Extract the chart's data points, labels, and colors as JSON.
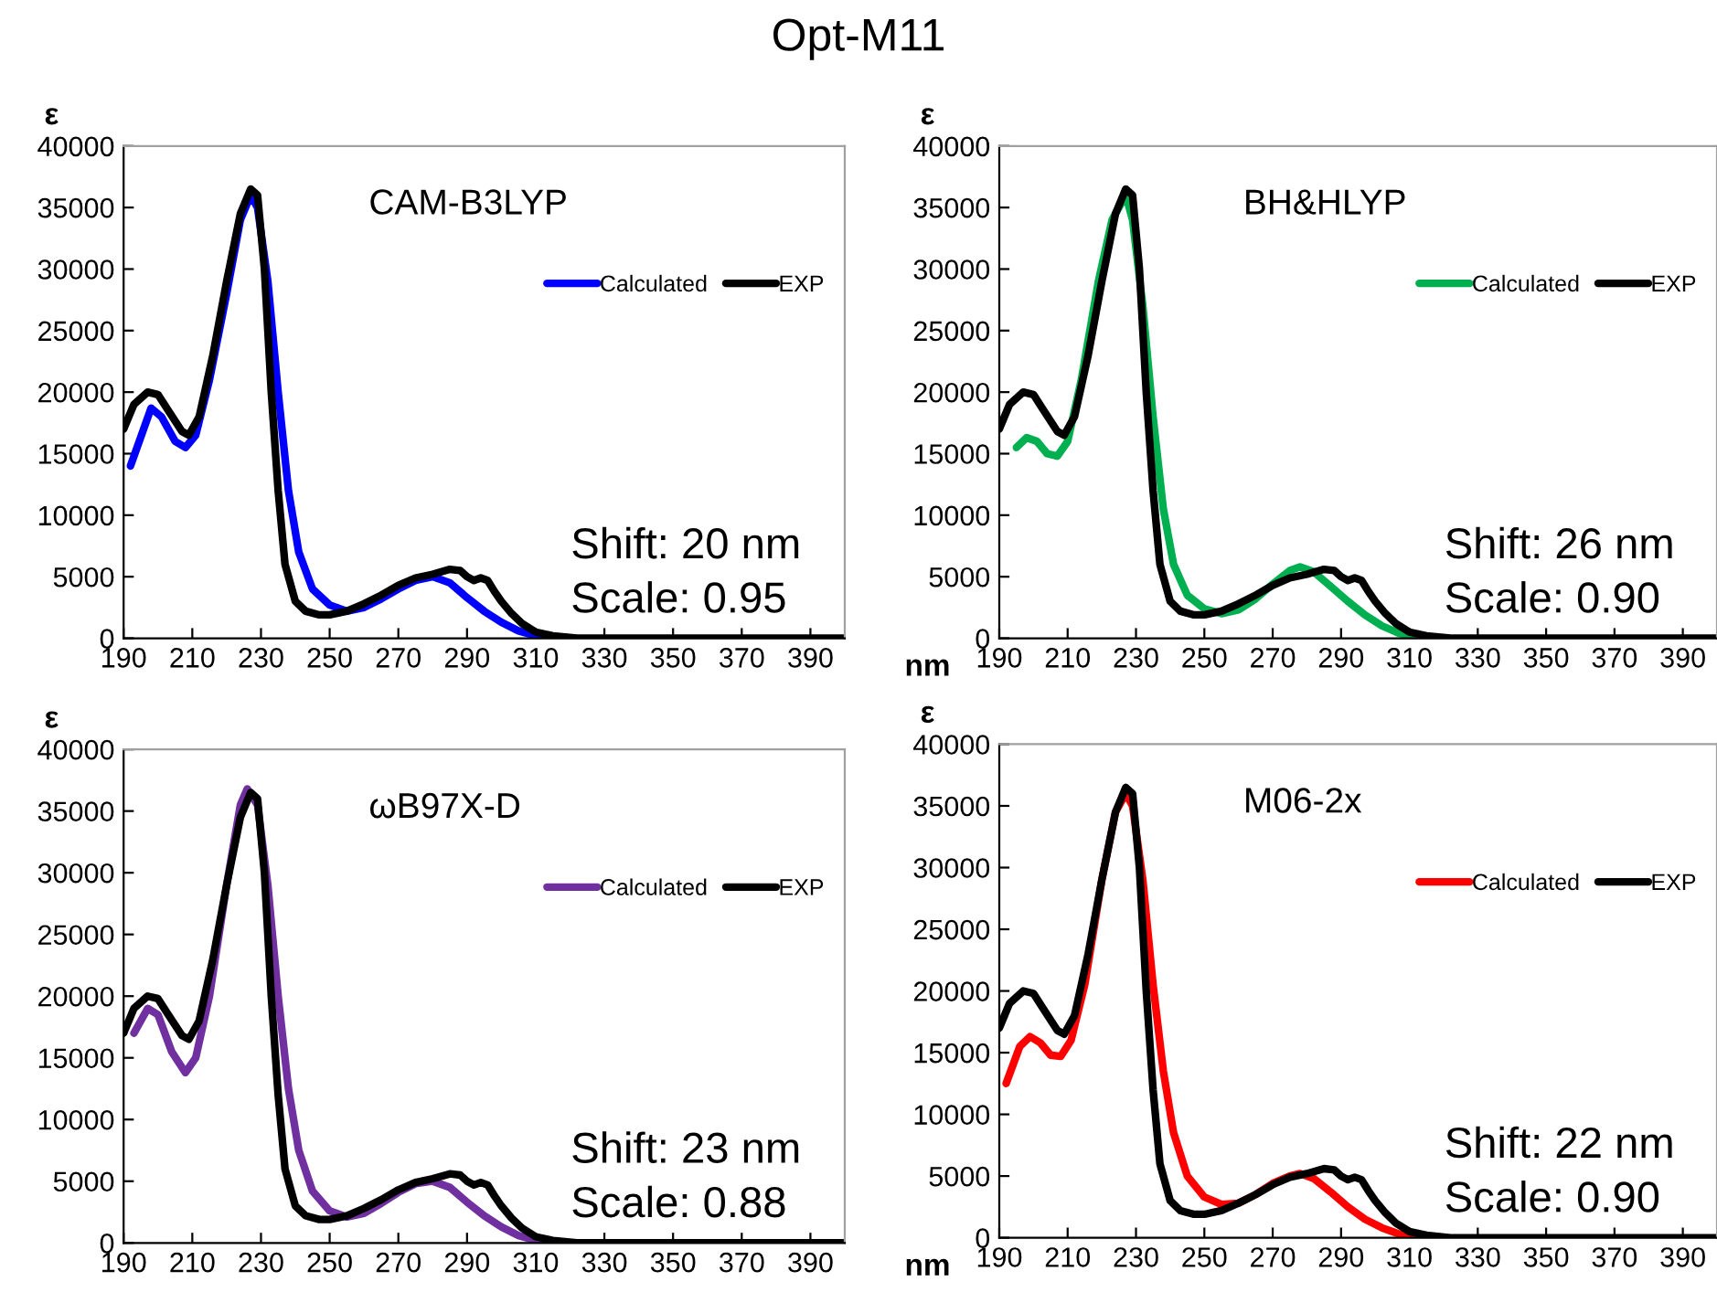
{
  "chart_data": [
    {
      "type": "line",
      "title": "Opt-M11",
      "ylabel": "ε",
      "annotations": [
        "CAM-B3LYP",
        "Shift: 20 nm",
        "Scale: 0.95"
      ],
      "legend": "top right",
      "xlim": [
        190,
        400
      ],
      "xticks": [
        190,
        210,
        230,
        250,
        270,
        290,
        310,
        330,
        350,
        370,
        390
      ],
      "ylim": [
        0,
        40000
      ],
      "yticks": [
        0,
        5000,
        10000,
        15000,
        20000,
        25000,
        30000,
        35000,
        40000
      ],
      "series": [
        {
          "name": "Calculated",
          "color": "#0000ff",
          "x": [
            192,
            198,
            201,
            205,
            208,
            211,
            215,
            220,
            224,
            227,
            229,
            232,
            235,
            238,
            241,
            245,
            250,
            255,
            260,
            265,
            270,
            275,
            280,
            285,
            290,
            295,
            300,
            305,
            310,
            316
          ],
          "values": [
            14000,
            18700,
            18000,
            16000,
            15500,
            16500,
            21000,
            28000,
            34000,
            36000,
            35000,
            29000,
            20000,
            12000,
            7000,
            4000,
            2700,
            2200,
            2500,
            3200,
            4000,
            4700,
            5000,
            4500,
            3300,
            2200,
            1300,
            600,
            200,
            0
          ]
        },
        {
          "name": "EXP",
          "color": "#000000",
          "x": [
            190,
            193,
            197,
            200,
            203,
            207,
            209,
            212,
            216,
            220,
            224,
            227,
            229,
            231,
            233,
            235,
            237,
            240,
            243,
            247,
            250,
            255,
            260,
            265,
            270,
            275,
            280,
            285,
            288,
            290,
            292,
            294,
            296,
            298,
            300,
            303,
            306,
            310,
            315,
            322,
            400
          ],
          "values": [
            17000,
            19000,
            20000,
            19800,
            18500,
            16800,
            16500,
            18000,
            23000,
            29000,
            34500,
            36500,
            36000,
            30000,
            20000,
            12000,
            6000,
            3000,
            2200,
            1900,
            1900,
            2200,
            2800,
            3500,
            4300,
            4900,
            5200,
            5600,
            5500,
            5000,
            4700,
            4900,
            4700,
            3800,
            3000,
            2000,
            1200,
            500,
            200,
            0,
            0
          ]
        }
      ]
    },
    {
      "type": "line",
      "xlabel": "nm",
      "ylabel": "ε",
      "annotations": [
        "BH&HLYP",
        "Shift: 26 nm",
        "Scale: 0.90"
      ],
      "legend": "top right",
      "xlim": [
        190,
        400
      ],
      "xticks": [
        190,
        210,
        230,
        250,
        270,
        290,
        310,
        330,
        350,
        370,
        390
      ],
      "ylim": [
        0,
        40000
      ],
      "yticks": [
        0,
        5000,
        10000,
        15000,
        20000,
        25000,
        30000,
        35000,
        40000
      ],
      "series": [
        {
          "name": "Calculated",
          "color": "#00b050",
          "x": [
            195,
            198,
            201,
            204,
            207,
            210,
            214,
            219,
            223,
            227,
            229,
            232,
            235,
            238,
            241,
            245,
            250,
            255,
            260,
            265,
            270,
            275,
            278,
            282,
            287,
            292,
            297,
            302,
            307,
            312,
            316
          ],
          "values": [
            15500,
            16300,
            16000,
            15000,
            14800,
            16000,
            21000,
            29000,
            34000,
            36000,
            34000,
            27000,
            18000,
            10500,
            6000,
            3500,
            2400,
            2000,
            2300,
            3200,
            4400,
            5500,
            5800,
            5400,
            4200,
            3000,
            1900,
            1000,
            400,
            100,
            0
          ]
        },
        {
          "name": "EXP",
          "color": "#000000",
          "x": [
            190,
            193,
            197,
            200,
            203,
            207,
            209,
            212,
            216,
            220,
            224,
            227,
            229,
            231,
            233,
            235,
            237,
            240,
            243,
            247,
            250,
            255,
            260,
            265,
            270,
            275,
            280,
            285,
            288,
            290,
            292,
            294,
            296,
            298,
            300,
            303,
            306,
            310,
            315,
            322,
            400
          ],
          "values": [
            17000,
            19000,
            20000,
            19800,
            18500,
            16800,
            16500,
            18000,
            23000,
            29000,
            34500,
            36500,
            36000,
            30000,
            20000,
            12000,
            6000,
            3000,
            2200,
            1900,
            1900,
            2200,
            2800,
            3500,
            4300,
            4900,
            5200,
            5600,
            5500,
            5000,
            4700,
            4900,
            4700,
            3800,
            3000,
            2000,
            1200,
            500,
            200,
            0,
            0
          ]
        }
      ]
    },
    {
      "type": "line",
      "ylabel": "ε",
      "annotations": [
        "ωB97X-D",
        "Shift: 23 nm",
        "Scale: 0.88"
      ],
      "legend": "top right",
      "xlim": [
        190,
        400
      ],
      "xticks": [
        190,
        210,
        230,
        250,
        270,
        290,
        310,
        330,
        350,
        370,
        390
      ],
      "ylim": [
        0,
        40000
      ],
      "yticks": [
        0,
        5000,
        10000,
        15000,
        20000,
        25000,
        30000,
        35000,
        40000
      ],
      "series": [
        {
          "name": "Calculated",
          "color": "#7030a0",
          "x": [
            193,
            197,
            200,
            204,
            208,
            211,
            215,
            220,
            224,
            226,
            229,
            232,
            235,
            238,
            241,
            245,
            250,
            255,
            260,
            265,
            270,
            275,
            280,
            285,
            290,
            295,
            300,
            305,
            310,
            316
          ],
          "values": [
            17000,
            19000,
            18500,
            15500,
            13800,
            15000,
            20000,
            29000,
            35500,
            36800,
            35500,
            29000,
            20000,
            12500,
            7500,
            4200,
            2600,
            2100,
            2400,
            3200,
            4100,
            4800,
            5000,
            4500,
            3300,
            2200,
            1300,
            600,
            200,
            0
          ]
        },
        {
          "name": "EXP",
          "color": "#000000",
          "x": [
            190,
            193,
            197,
            200,
            203,
            207,
            209,
            212,
            216,
            220,
            224,
            227,
            229,
            231,
            233,
            235,
            237,
            240,
            243,
            247,
            250,
            255,
            260,
            265,
            270,
            275,
            280,
            285,
            288,
            290,
            292,
            294,
            296,
            298,
            300,
            303,
            306,
            310,
            315,
            322,
            400
          ],
          "values": [
            17000,
            19000,
            20000,
            19800,
            18500,
            16800,
            16500,
            18000,
            23000,
            29000,
            34500,
            36500,
            36000,
            30000,
            20000,
            12000,
            6000,
            3000,
            2200,
            1900,
            1900,
            2200,
            2800,
            3500,
            4300,
            4900,
            5200,
            5600,
            5500,
            5000,
            4700,
            4900,
            4700,
            3800,
            3000,
            2000,
            1200,
            500,
            200,
            0,
            0
          ]
        }
      ]
    },
    {
      "type": "line",
      "xlabel": "nm",
      "ylabel": "ε",
      "annotations": [
        "M06-2x",
        "Shift: 22 nm",
        "Scale: 0.90"
      ],
      "legend": "top right",
      "xlim": [
        190,
        400
      ],
      "xticks": [
        190,
        210,
        230,
        250,
        270,
        290,
        310,
        330,
        350,
        370,
        390
      ],
      "ylim": [
        0,
        40000
      ],
      "yticks": [
        0,
        5000,
        10000,
        15000,
        20000,
        25000,
        30000,
        35000,
        40000
      ],
      "series": [
        {
          "name": "Calculated",
          "color": "#ff0000",
          "x": [
            192,
            196,
            199,
            202,
            205,
            208,
            211,
            215,
            220,
            224,
            227,
            229,
            232,
            235,
            238,
            241,
            245,
            250,
            255,
            260,
            265,
            270,
            275,
            278,
            282,
            287,
            292,
            297,
            302,
            307,
            314
          ],
          "values": [
            12500,
            15500,
            16300,
            15800,
            14800,
            14700,
            16000,
            20500,
            29000,
            34500,
            36000,
            35000,
            29000,
            20500,
            13500,
            8500,
            5000,
            3300,
            2700,
            2800,
            3500,
            4400,
            5000,
            5200,
            4800,
            3700,
            2500,
            1500,
            800,
            300,
            0
          ]
        },
        {
          "name": "EXP",
          "color": "#000000",
          "x": [
            190,
            193,
            197,
            200,
            203,
            207,
            209,
            212,
            216,
            220,
            224,
            227,
            229,
            231,
            233,
            235,
            237,
            240,
            243,
            247,
            250,
            255,
            260,
            265,
            270,
            275,
            280,
            285,
            288,
            290,
            292,
            294,
            296,
            298,
            300,
            303,
            306,
            310,
            315,
            322,
            400
          ],
          "values": [
            17000,
            19000,
            20000,
            19800,
            18500,
            16800,
            16500,
            18000,
            23000,
            29000,
            34500,
            36500,
            36000,
            30000,
            20000,
            12000,
            6000,
            3000,
            2200,
            1900,
            1900,
            2200,
            2800,
            3500,
            4300,
            4900,
            5200,
            5600,
            5500,
            5000,
            4700,
            4900,
            4700,
            3800,
            3000,
            2000,
            1200,
            500,
            200,
            0,
            0
          ]
        }
      ]
    }
  ]
}
